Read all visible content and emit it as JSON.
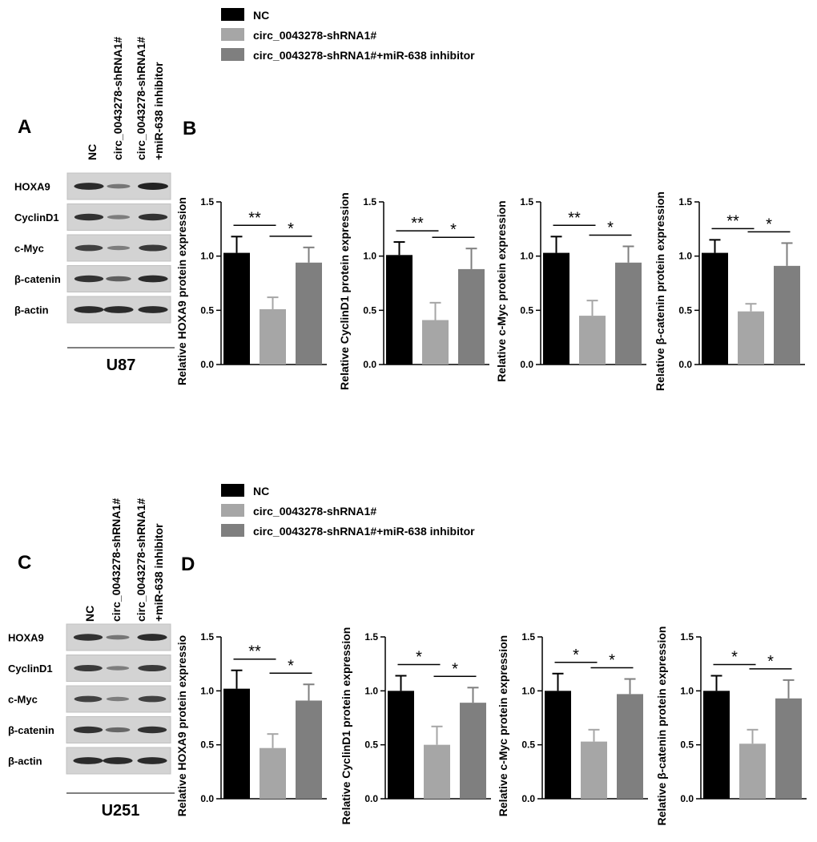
{
  "colors": {
    "nc": "#000000",
    "sh": "#a6a6a6",
    "inh": "#7f7f7f",
    "axis": "#000000"
  },
  "legend_top": [
    {
      "label": "NC",
      "color_key": "nc"
    },
    {
      "label": "circ_0043278-shRNA1#",
      "color_key": "sh"
    },
    {
      "label": "circ_0043278-shRNA1#+miR-638 inhibitor",
      "color_key": "inh"
    }
  ],
  "legend_bottom": [
    {
      "label": "NC",
      "color_key": "nc"
    },
    {
      "label": "circ_0043278-shRNA1#",
      "color_key": "sh"
    },
    {
      "label": "circ_0043278-shRNA1#+miR-638 inhibitor",
      "color_key": "inh"
    }
  ],
  "blots": [
    {
      "panel": "A",
      "cell_line": "U87",
      "columns": [
        "NC",
        "circ_0043278-shRNA1#",
        "circ_0043278-shRNA1#",
        "+miR-638 inhibitor"
      ],
      "rows": [
        {
          "label": "HOXA9",
          "intensity": [
            0.95,
            0.45,
            1.0
          ]
        },
        {
          "label": "CyclinD1",
          "intensity": [
            0.9,
            0.4,
            0.9
          ]
        },
        {
          "label": "c-Myc",
          "intensity": [
            0.8,
            0.4,
            0.85
          ]
        },
        {
          "label": "β-catenin",
          "intensity": [
            0.9,
            0.6,
            0.95
          ]
        },
        {
          "label": "β-actin",
          "intensity": [
            0.95,
            0.95,
            0.95
          ]
        }
      ]
    },
    {
      "panel": "C",
      "cell_line": "U251",
      "columns": [
        "NC",
        "circ_0043278-shRNA1#",
        "circ_0043278-shRNA1#",
        "+miR-638 inhibitor"
      ],
      "rows": [
        {
          "label": "HOXA9",
          "intensity": [
            0.9,
            0.45,
            0.95
          ]
        },
        {
          "label": "CyclinD1",
          "intensity": [
            0.85,
            0.4,
            0.85
          ]
        },
        {
          "label": "c-Myc",
          "intensity": [
            0.8,
            0.4,
            0.8
          ]
        },
        {
          "label": "β-catenin",
          "intensity": [
            0.9,
            0.55,
            0.9
          ]
        },
        {
          "label": "β-actin",
          "intensity": [
            0.95,
            0.95,
            0.95
          ]
        }
      ]
    }
  ],
  "panel_labels": {
    "b": "B",
    "d": "D"
  },
  "chart_data": [
    {
      "type": "bar",
      "panel": "B",
      "ylabel": "Relative HOXA9 protein expression",
      "categories": [
        "NC",
        "circ_0043278-shRNA1#",
        "circ_0043278-shRNA1#+miR-638 inhibitor"
      ],
      "values": [
        1.03,
        0.51,
        0.94
      ],
      "errors": [
        0.15,
        0.11,
        0.14
      ],
      "ylim": [
        0,
        1.5
      ],
      "yticks": [
        "0.0",
        "0.5",
        "1.0",
        "1.5"
      ],
      "significance": [
        "**",
        "*"
      ]
    },
    {
      "type": "bar",
      "panel": "B",
      "ylabel": "Relative CyclinD1 protein expression",
      "categories": [
        "NC",
        "circ_0043278-shRNA1#",
        "circ_0043278-shRNA1#+miR-638 inhibitor"
      ],
      "values": [
        1.01,
        0.41,
        0.88
      ],
      "errors": [
        0.12,
        0.16,
        0.19
      ],
      "ylim": [
        0,
        1.5
      ],
      "yticks": [
        "0.0",
        "0.5",
        "1.0",
        "1.5"
      ],
      "significance": [
        "**",
        "*"
      ]
    },
    {
      "type": "bar",
      "panel": "B",
      "ylabel": "Relative c-Myc protein expression",
      "categories": [
        "NC",
        "circ_0043278-shRNA1#",
        "circ_0043278-shRNA1#+miR-638 inhibitor"
      ],
      "values": [
        1.03,
        0.45,
        0.94
      ],
      "errors": [
        0.15,
        0.14,
        0.15
      ],
      "ylim": [
        0,
        1.5
      ],
      "yticks": [
        "0.0",
        "0.5",
        "1.0",
        "1.5"
      ],
      "significance": [
        "**",
        "*"
      ]
    },
    {
      "type": "bar",
      "panel": "B",
      "ylabel": "Relative β-catenin protein expression",
      "categories": [
        "NC",
        "circ_0043278-shRNA1#",
        "circ_0043278-shRNA1#+miR-638 inhibitor"
      ],
      "values": [
        1.03,
        0.49,
        0.91
      ],
      "errors": [
        0.12,
        0.07,
        0.21
      ],
      "ylim": [
        0,
        1.5
      ],
      "yticks": [
        "0.0",
        "0.5",
        "1.0",
        "1.5"
      ],
      "significance": [
        "**",
        "*"
      ]
    },
    {
      "type": "bar",
      "panel": "D",
      "ylabel": "Relative HOXA9 protein expressio",
      "categories": [
        "NC",
        "circ_0043278-shRNA1#",
        "circ_0043278-shRNA1#+miR-638 inhibitor"
      ],
      "values": [
        1.02,
        0.47,
        0.91
      ],
      "errors": [
        0.17,
        0.13,
        0.15
      ],
      "ylim": [
        0,
        1.5
      ],
      "yticks": [
        "0.0",
        "0.5",
        "1.0",
        "1.5"
      ],
      "significance": [
        "**",
        "*"
      ]
    },
    {
      "type": "bar",
      "panel": "D",
      "ylabel": "Relative CyclinD1 protein expression",
      "categories": [
        "NC",
        "circ_0043278-shRNA1#",
        "circ_0043278-shRNA1#+miR-638 inhibitor"
      ],
      "values": [
        1.0,
        0.5,
        0.89
      ],
      "errors": [
        0.14,
        0.17,
        0.14
      ],
      "ylim": [
        0,
        1.5
      ],
      "yticks": [
        "0.0",
        "0.5",
        "1.0",
        "1.5"
      ],
      "significance": [
        "*",
        "*"
      ]
    },
    {
      "type": "bar",
      "panel": "D",
      "ylabel": "Relative c-Myc protein expression",
      "categories": [
        "NC",
        "circ_0043278-shRNA1#",
        "circ_0043278-shRNA1#+miR-638 inhibitor"
      ],
      "values": [
        1.0,
        0.53,
        0.97
      ],
      "errors": [
        0.16,
        0.11,
        0.14
      ],
      "ylim": [
        0,
        1.5
      ],
      "yticks": [
        "0.0",
        "0.5",
        "1.0",
        "1.5"
      ],
      "significance": [
        "*",
        "*"
      ]
    },
    {
      "type": "bar",
      "panel": "D",
      "ylabel": "Relative β-catenin protein expression",
      "categories": [
        "NC",
        "circ_0043278-shRNA1#",
        "circ_0043278-shRNA1#+miR-638 inhibitor"
      ],
      "values": [
        1.0,
        0.51,
        0.93
      ],
      "errors": [
        0.14,
        0.13,
        0.17
      ],
      "ylim": [
        0,
        1.5
      ],
      "yticks": [
        "0.0",
        "0.5",
        "1.0",
        "1.5"
      ],
      "significance": [
        "*",
        "*"
      ]
    }
  ]
}
